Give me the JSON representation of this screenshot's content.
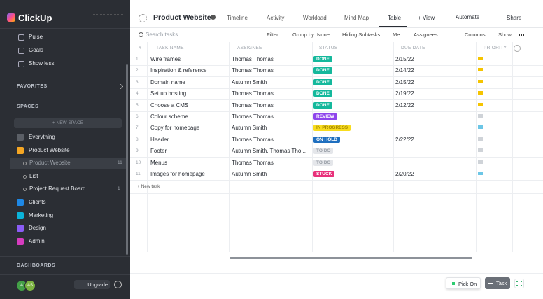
{
  "sidebar": {
    "logo": "ClickUp",
    "nav": [
      "Pulse",
      "Goals",
      "Show less"
    ],
    "favorites": "FAVORITES",
    "spaces_heading": "SPACES",
    "new_space": "+ NEW SPACE",
    "spaces": [
      {
        "label": "Everything",
        "color": "#5b5f66"
      },
      {
        "label": "Product Website",
        "color": "#f5a623"
      }
    ],
    "lists": [
      {
        "label": "Product Website",
        "count": "11"
      },
      {
        "label": "List"
      },
      {
        "label": "Project Request Board",
        "count": "1"
      }
    ],
    "more_spaces": [
      {
        "label": "Clients",
        "color": "#1e88e5"
      },
      {
        "label": "Marketing",
        "color": "#0bb3d9"
      },
      {
        "label": "Design",
        "color": "#8b5cf6"
      },
      {
        "label": "Admin",
        "color": "#d63cbf"
      }
    ],
    "dashboards": "DASHBOARDS",
    "avatars": [
      "A",
      "AS"
    ],
    "upgrade": "Upgrade"
  },
  "header": {
    "title": "Product Website",
    "tabs": [
      "Timeline",
      "Activity",
      "Workload",
      "Mind Map",
      "Table"
    ],
    "active_tab": 4,
    "add_view": "+ View",
    "automate": "Automate",
    "share": "Share"
  },
  "toolbar": {
    "search": "Search tasks...",
    "filter": "Filter",
    "group_by": "Group by: None",
    "subtasks": "Hiding Subtasks",
    "me": "Me",
    "assignees": "Assignees",
    "columns": "Columns",
    "show": "Show"
  },
  "table": {
    "columns": [
      "#",
      "TASK NAME",
      "ASSIGNEE",
      "STATUS",
      "DUE DATE",
      "PRIORITY"
    ],
    "rows": [
      {
        "number": 1,
        "name": "Wire frames",
        "assignee": "Thomas Thomas",
        "status": "DONE",
        "status_color": "#14b89c",
        "status_text": "#ffffff",
        "due": "2/15/22",
        "priority_color": "#f5c400"
      },
      {
        "number": 2,
        "name": "Inspiration & reference",
        "assignee": "Thomas Thomas",
        "status": "DONE",
        "status_color": "#14b89c",
        "status_text": "#ffffff",
        "due": "2/14/22",
        "priority_color": "#f5c400"
      },
      {
        "number": 3,
        "name": "Domain name",
        "assignee": "Autumn Smith",
        "status": "DONE",
        "status_color": "#14b89c",
        "status_text": "#ffffff",
        "due": "2/15/22",
        "priority_color": "#f5c400"
      },
      {
        "number": 4,
        "name": "Set up hosting",
        "assignee": "Thomas Thomas",
        "status": "DONE",
        "status_color": "#14b89c",
        "status_text": "#ffffff",
        "due": "2/19/22",
        "priority_color": "#f5c400"
      },
      {
        "number": 5,
        "name": "Choose a CMS",
        "assignee": "Thomas Thomas",
        "status": "DONE",
        "status_color": "#14b89c",
        "status_text": "#ffffff",
        "due": "2/12/22",
        "priority_color": "#f5c400"
      },
      {
        "number": 6,
        "name": "Colour scheme",
        "assignee": "Thomas Thomas",
        "status": "REVIEW",
        "status_color": "#8e44ec",
        "status_text": "#ffffff",
        "priority_color": "#cfd3d8"
      },
      {
        "number": 7,
        "name": "Copy for homepage",
        "assignee": "Autumn Smith",
        "status": "IN PROGRESS",
        "status_color": "#f8dc1e",
        "status_text": "#a78a00",
        "priority_color": "#6cc6e6"
      },
      {
        "number": 8,
        "name": "Header",
        "assignee": "Thomas Thomas",
        "status": "ON HOLD",
        "status_color": "#1f6fbf",
        "status_text": "#ffffff",
        "due": "2/22/22",
        "priority_color": "#cfd3d8"
      },
      {
        "number": 9,
        "name": "Footer",
        "assignee": "Autumn Smith, Thomas Tho...",
        "status": "TO DO",
        "status_color": "#e4e6ea",
        "status_text": "#9aa0a8",
        "priority_color": "#cfd3d8"
      },
      {
        "number": 10,
        "name": "Menus",
        "assignee": "Thomas Thomas",
        "status": "TO DO",
        "status_color": "#e4e6ea",
        "status_text": "#9aa0a8",
        "priority_color": "#cfd3d8"
      },
      {
        "number": 11,
        "name": "Images for homepage",
        "assignee": "Autumn Smith",
        "status": "STUCK",
        "status_color": "#e8317a",
        "status_text": "#ffffff",
        "due": "2/20/22",
        "priority_color": "#6cc6e6"
      }
    ]
  },
  "new_task": "+ New task",
  "footer": {
    "pick": "Pick On",
    "task": "Task"
  }
}
